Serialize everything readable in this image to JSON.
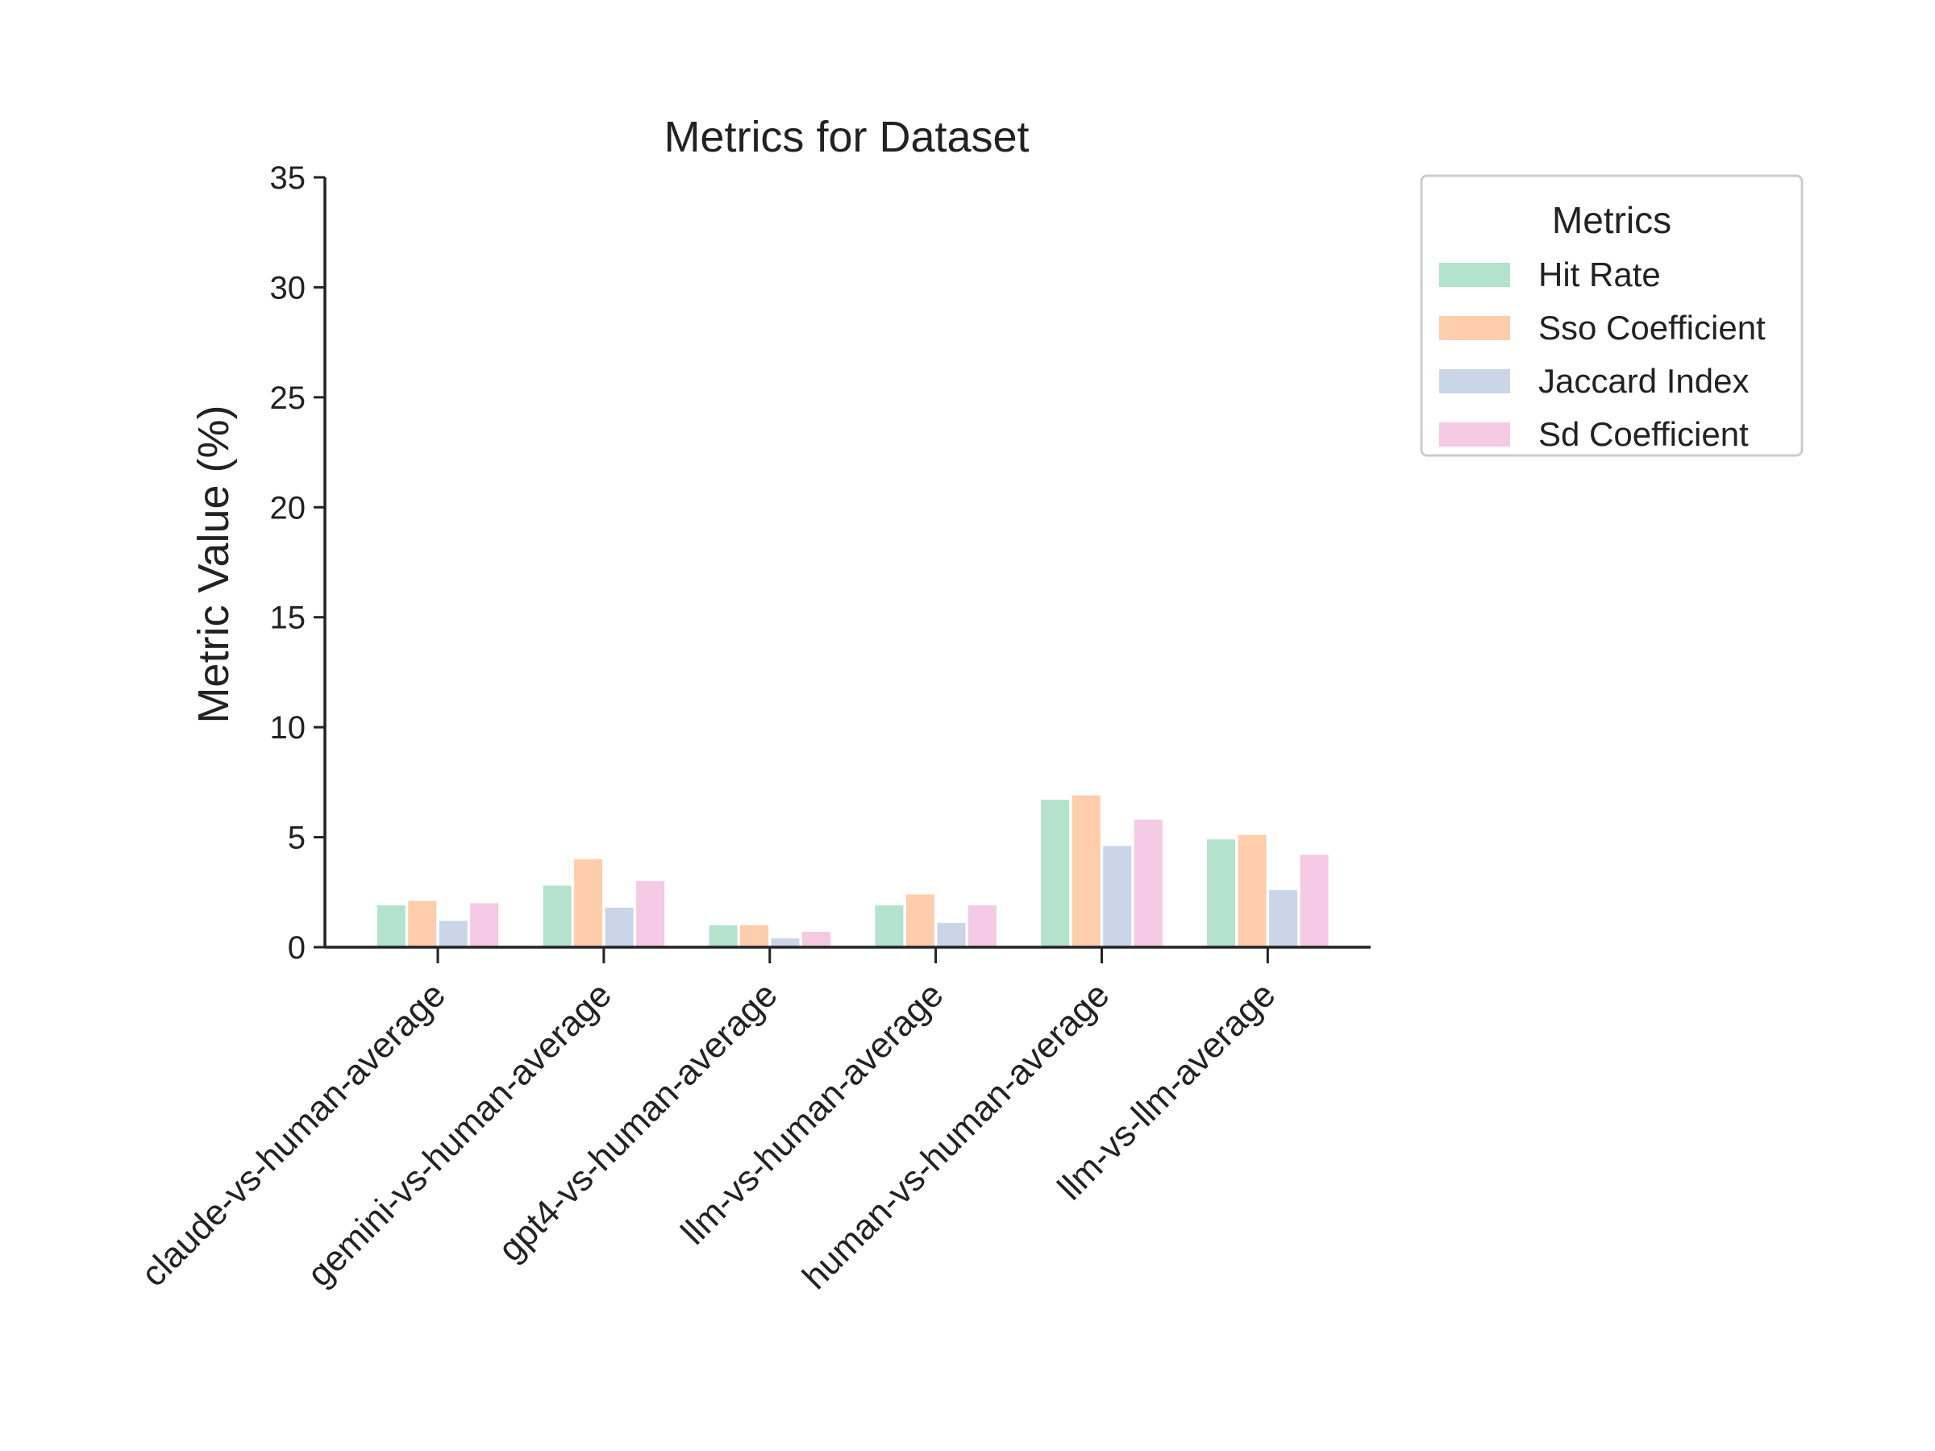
{
  "chart_data": {
    "type": "bar",
    "title": "Metrics for Dataset",
    "xlabel": "",
    "ylabel": "Metric Value (%)",
    "ylim": [
      0,
      35
    ],
    "yticks": [
      0,
      5,
      10,
      15,
      20,
      25,
      30,
      35
    ],
    "grid": false,
    "legend": {
      "title": "Metrics",
      "placement": "outside-top-right"
    },
    "categories": [
      "claude-vs-human-average",
      "gemini-vs-human-average",
      "gpt4-vs-human-average",
      "llm-vs-human-average",
      "human-vs-human-average",
      "llm-vs-llm-average"
    ],
    "series": [
      {
        "name": "Hit Rate",
        "color": "#b3e2cd",
        "values": [
          1.9,
          2.8,
          1.0,
          1.9,
          6.7,
          4.9
        ]
      },
      {
        "name": "Sso Coefficient",
        "color": "#fdcdac",
        "values": [
          2.1,
          4.0,
          1.0,
          2.4,
          6.9,
          5.1
        ]
      },
      {
        "name": "Jaccard Index",
        "color": "#cbd5e8",
        "values": [
          1.2,
          1.8,
          0.4,
          1.1,
          4.6,
          2.6
        ]
      },
      {
        "name": "Sd Coefficient",
        "color": "#f4cae4",
        "values": [
          2.0,
          3.0,
          0.7,
          1.9,
          5.8,
          4.2
        ]
      }
    ]
  }
}
